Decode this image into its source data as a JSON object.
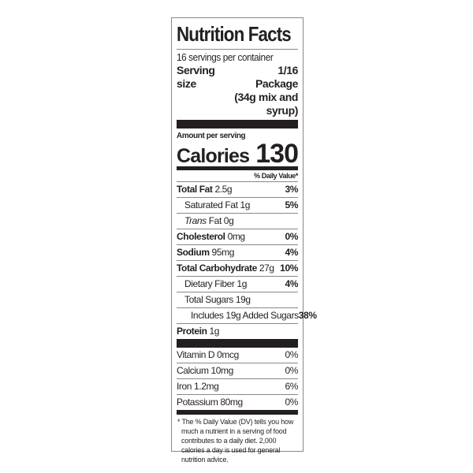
{
  "title": "Nutrition Facts",
  "servings_per_container": "16 servings per container",
  "serving_size_label": "Serving size",
  "serving_size_value": "1/16 Package (34g mix and syrup)",
  "amount_per_serving": "Amount per serving",
  "calories_label": "Calories",
  "calories_value": "130",
  "dv_header": "% Daily Value*",
  "nutrients": [
    {
      "name": "Total Fat",
      "amount": "2.5g",
      "dv": "3%"
    },
    {
      "name": "Saturated Fat",
      "amount": "1g",
      "dv": "5%"
    },
    {
      "name": "Trans",
      "suffix": "Fat 0g",
      "dv": ""
    },
    {
      "name": "Cholesterol",
      "amount": "0mg",
      "dv": "0%"
    },
    {
      "name": "Sodium",
      "amount": "95mg",
      "dv": "4%"
    },
    {
      "name": "Total Carbohydrate",
      "amount": "27g",
      "dv": "10%"
    },
    {
      "name": "Dietary Fiber",
      "amount": "1g",
      "dv": "4%"
    },
    {
      "name": "Total Sugars",
      "amount": "19g",
      "dv": ""
    },
    {
      "name": "Includes 19g Added Sugars",
      "dv": "38%"
    },
    {
      "name": "Protein",
      "amount": "1g"
    }
  ],
  "vitamins": [
    {
      "label": "Vitamin D 0mcg",
      "dv": "0%"
    },
    {
      "label": "Calcium 10mg",
      "dv": "0%"
    },
    {
      "label": "Iron 1.2mg",
      "dv": "6%"
    },
    {
      "label": "Potassium 80mg",
      "dv": "0%"
    }
  ],
  "footnote": "* The % Daily Value (DV) tells you how much a nutrient in a serving of food contributes to a daily diet. 2,000 calories a day is used for general nutrition advice."
}
